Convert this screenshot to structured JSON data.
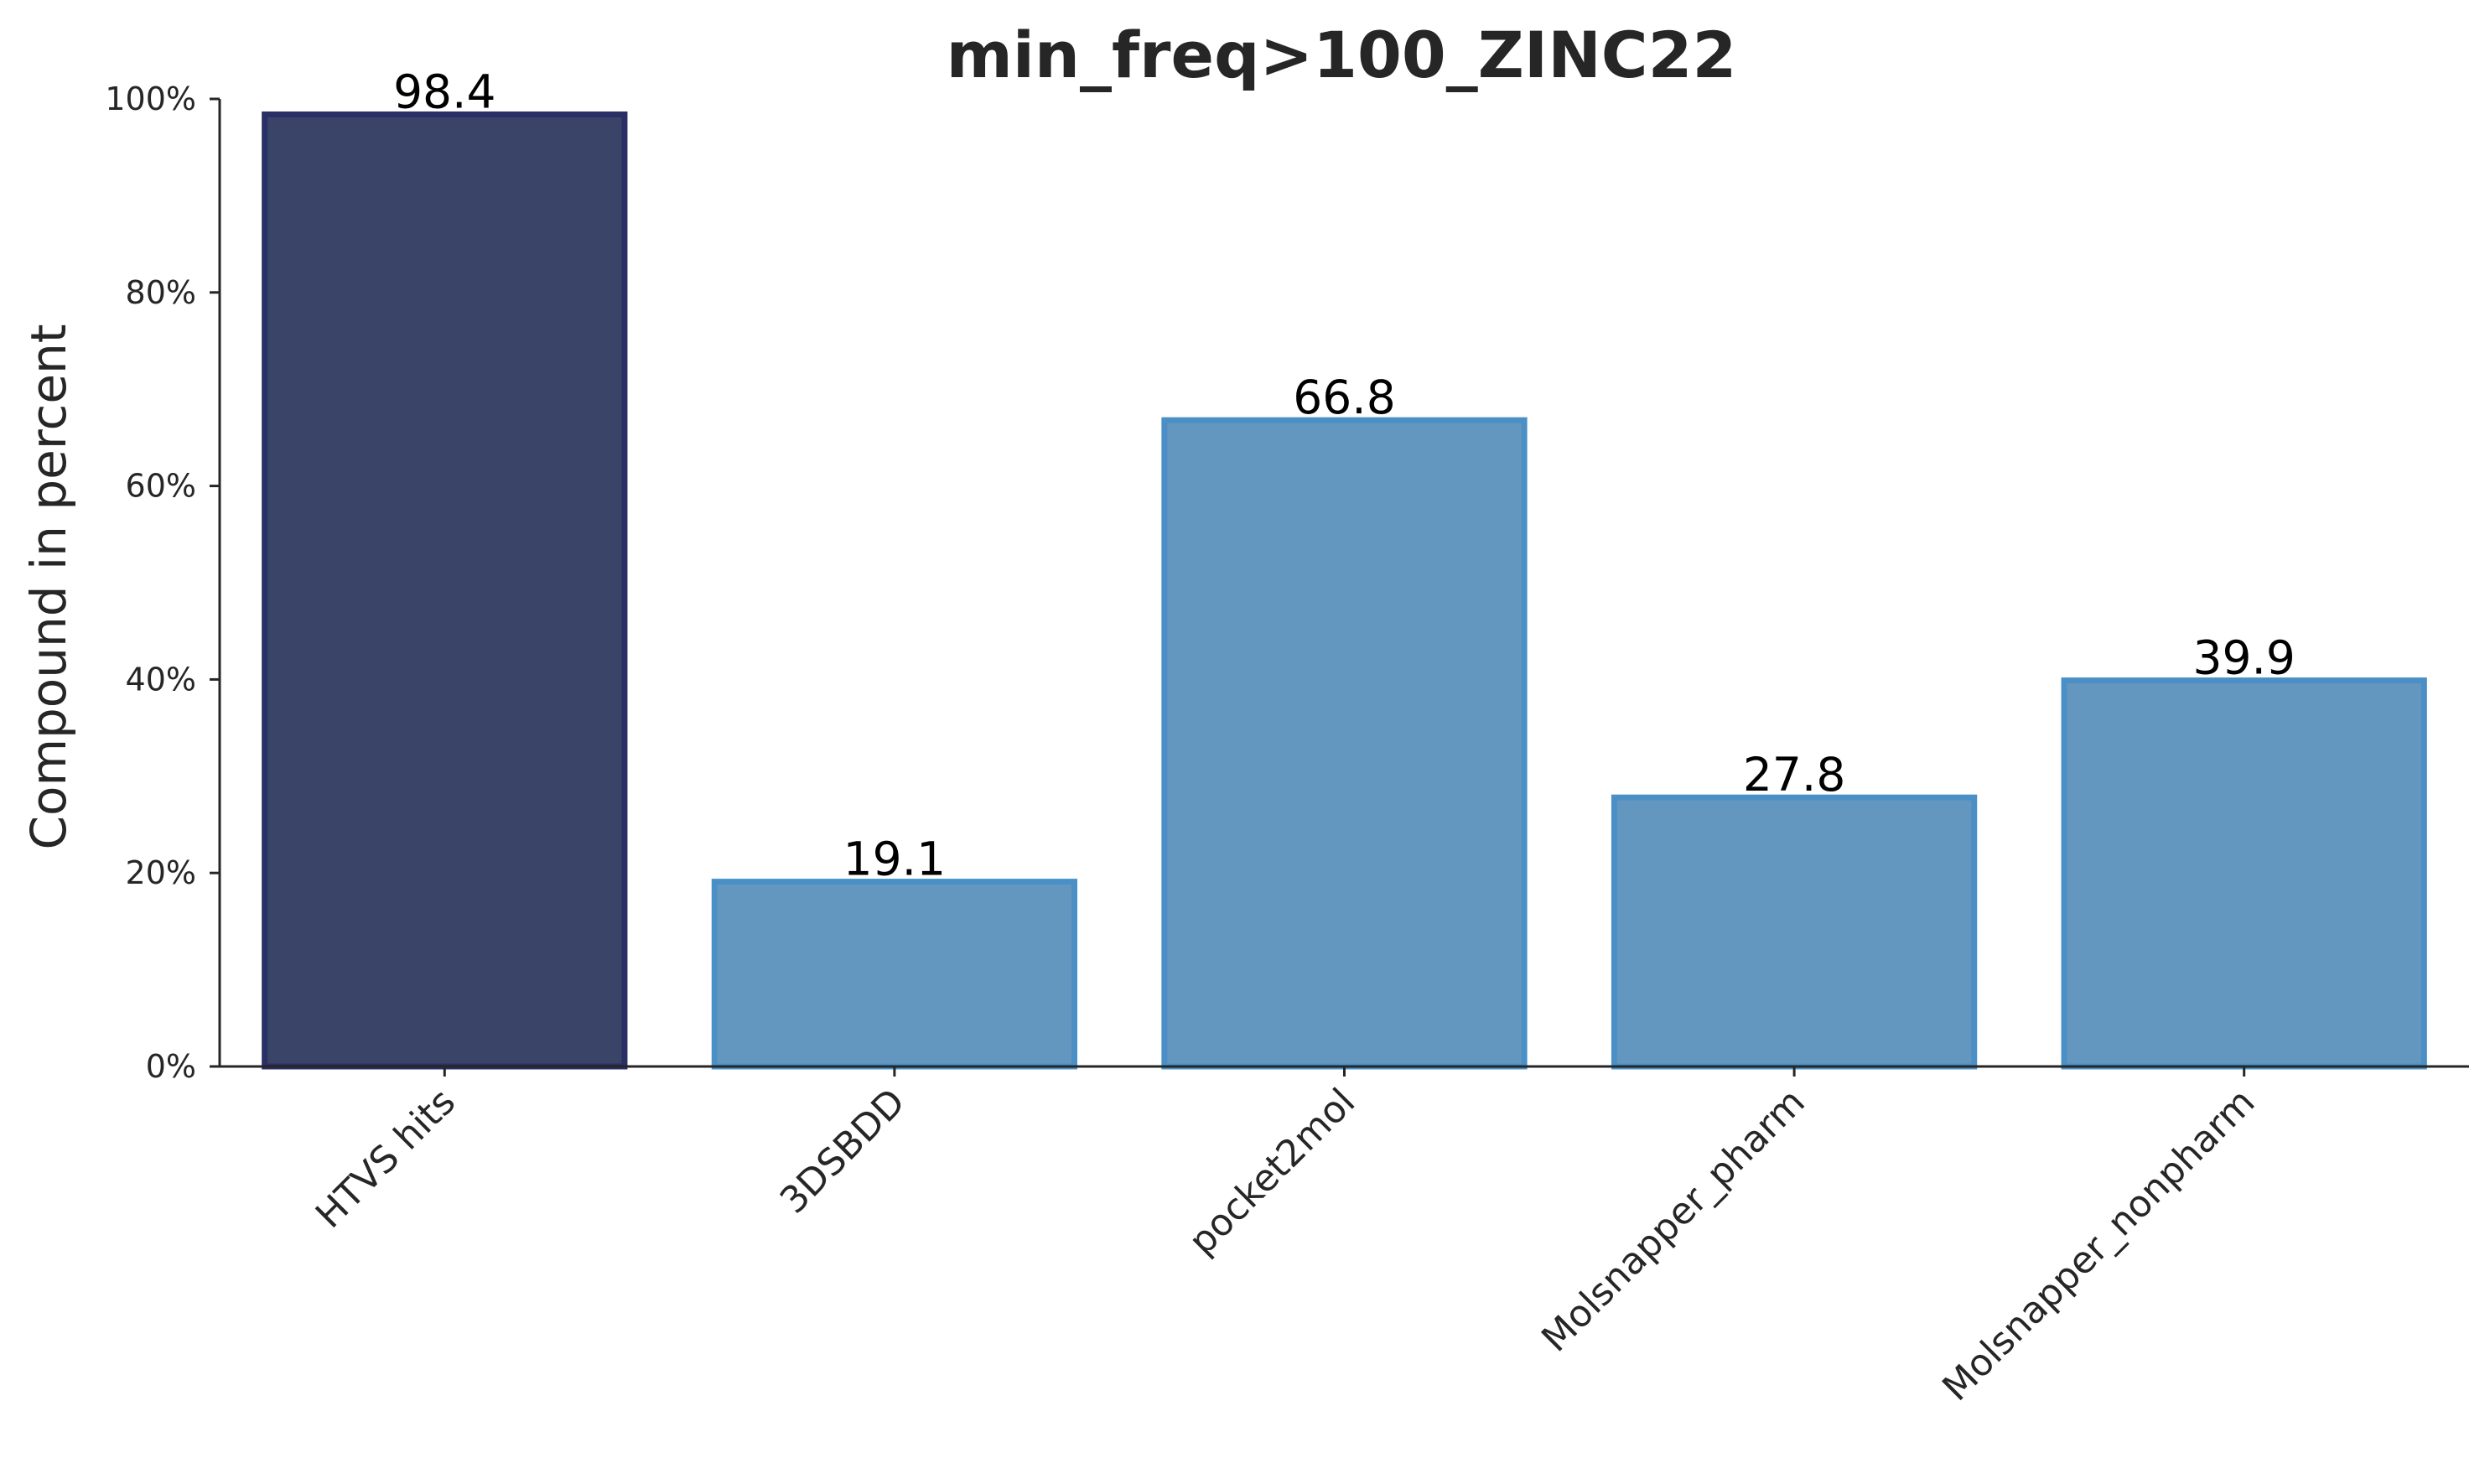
{
  "chart_data": {
    "type": "bar",
    "title": "min_freq>100_ZINC22",
    "xlabel": "",
    "ylabel": "Compound in percent",
    "categories": [
      "HTVS hits",
      "3DSBDD",
      "pocket2mol",
      "Molsnapper_pharm",
      "Molsnapper_nonpharm"
    ],
    "values": [
      98.4,
      19.1,
      66.8,
      27.8,
      39.9
    ],
    "data_labels": [
      "98.4",
      "19.1",
      "66.8",
      "27.8",
      "39.9"
    ],
    "ylim": [
      0,
      100
    ],
    "yticks": [
      0,
      20,
      40,
      60,
      80,
      100
    ],
    "ytick_labels": [
      "0%",
      "20%",
      "40%",
      "60%",
      "80%",
      "100%"
    ],
    "grid": false,
    "legend": "none",
    "colors": {
      "highlight_fill": "#3a4368",
      "highlight_edge": "#2a2f66",
      "default_fill": "#6497bf",
      "default_edge": "#4a90c6"
    },
    "highlight_index": 0
  }
}
